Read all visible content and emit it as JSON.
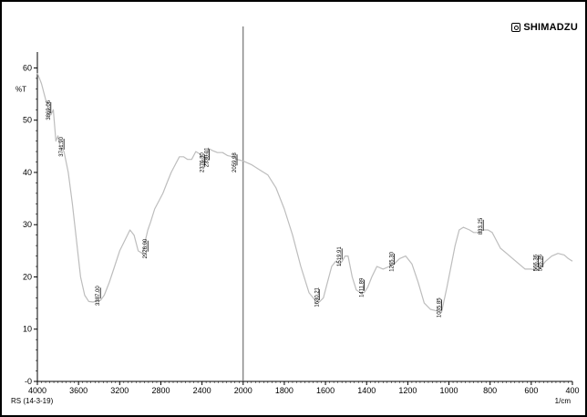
{
  "brand": {
    "logo_icon": "shimadzu-logo-icon",
    "name": "SHIMADZU"
  },
  "chart_data": {
    "type": "line",
    "title": "",
    "xlabel": "1/cm",
    "ylabel": "%T",
    "footer_text": "RS (14-3-19)",
    "xlim": [
      4000,
      400
    ],
    "ylim": [
      0,
      62
    ],
    "x_reversed": true,
    "x_ticks": [
      4000,
      3600,
      3200,
      2800,
      2400,
      2000,
      1600,
      1200,
      800,
      400
    ],
    "x_tick_labels": [
      "4000",
      "3600",
      "3200",
      "2800",
      "2400",
      "2000",
      "1800",
      "1600",
      "1400",
      "1200",
      "1000",
      "800",
      "600",
      "400"
    ],
    "x_tick_values": [
      4000,
      3600,
      3200,
      2800,
      2400,
      2000,
      1800,
      1600,
      1400,
      1200,
      1000,
      800,
      600,
      400
    ],
    "y_ticks": [
      0,
      10,
      20,
      30,
      40,
      50,
      60
    ],
    "y_tick_labels": [
      "-0",
      "10",
      "20",
      "30",
      "40",
      "50",
      "60"
    ],
    "grid": false,
    "marker_line_x": 2000,
    "series": [
      {
        "color": "#bdbdbd",
        "x": [
          4000,
          3960,
          3920,
          3890,
          3869,
          3845,
          3820,
          3800,
          3780,
          3741,
          3700,
          3660,
          3620,
          3580,
          3540,
          3500,
          3460,
          3420,
          3387,
          3350,
          3300,
          3250,
          3200,
          3150,
          3100,
          3060,
          3020,
          2980,
          2950,
          2926,
          2900,
          2860,
          2820,
          2780,
          2740,
          2700,
          2660,
          2620,
          2580,
          2540,
          2500,
          2460,
          2420,
          2390,
          2376,
          2360,
          2350,
          2330,
          2300,
          2250,
          2200,
          2150,
          2100,
          2060,
          2000,
          1960,
          1920,
          1880,
          1840,
          1800,
          1760,
          1720,
          1680,
          1650,
          1630,
          1610,
          1590,
          1570,
          1550,
          1530,
          1519,
          1505,
          1490,
          1470,
          1450,
          1430,
          1412,
          1395,
          1375,
          1350,
          1320,
          1290,
          1266,
          1240,
          1210,
          1180,
          1150,
          1120,
          1090,
          1060,
          1036,
          1010,
          990,
          970,
          950,
          930,
          900,
          880,
          860,
          833,
          810,
          790,
          770,
          750,
          720,
          690,
          660,
          630,
          600,
          580,
          566,
          550,
          530,
          500,
          470,
          440,
          420,
          400
        ],
        "y": [
          59,
          57,
          54,
          52,
          51,
          52,
          46,
          47,
          45,
          44,
          40,
          34,
          27,
          20,
          16.5,
          15.3,
          15.2,
          15.4,
          15.5,
          16.5,
          19,
          22,
          25,
          27,
          29,
          28,
          25,
          24.5,
          27,
          29,
          30.5,
          33,
          34.5,
          36,
          38,
          40,
          41.5,
          43,
          43,
          42.5,
          42.5,
          44,
          43.5,
          42,
          41,
          43,
          44,
          44.5,
          44.2,
          43.8,
          43.8,
          43.2,
          43,
          42.5,
          42.2,
          41.5,
          40.5,
          39.5,
          37,
          33,
          28,
          22,
          17,
          15.5,
          15.2,
          16,
          19,
          22,
          23,
          22.5,
          23,
          24,
          24,
          20,
          17.5,
          17,
          17,
          18,
          20,
          22,
          21.5,
          22,
          22.5,
          23.5,
          24,
          22.5,
          19,
          15,
          13.8,
          13.5,
          13.2,
          18,
          22,
          26,
          29,
          29.5,
          29,
          28.5,
          28.5,
          29,
          29,
          28.5,
          27,
          25.5,
          24.5,
          23.5,
          22.5,
          21.5,
          21.5,
          21.3,
          21.5,
          22,
          23,
          24,
          24.5,
          24.2,
          23.5,
          23
        ]
      }
    ],
    "peak_labels": [
      {
        "x": 3869.06,
        "y": 51,
        "label": "3869.06"
      },
      {
        "x": 3741.9,
        "y": 44,
        "label": "3741.90"
      },
      {
        "x": 3387.0,
        "y": 15.5,
        "label": "3387.00"
      },
      {
        "x": 2926.0,
        "y": 24.5,
        "label": "2926.00"
      },
      {
        "x": 2376.3,
        "y": 41,
        "label": "2376.30"
      },
      {
        "x": 2330.01,
        "y": 42,
        "label": "2330.01"
      },
      {
        "x": 2059.98,
        "y": 41,
        "label": "2059.98"
      },
      {
        "x": 1630.21,
        "y": 15.2,
        "label": "1630.21"
      },
      {
        "x": 1519.91,
        "y": 23,
        "label": "1519.91"
      },
      {
        "x": 1411.89,
        "y": 17,
        "label": "1411.89"
      },
      {
        "x": 1265.3,
        "y": 22,
        "label": "1265.30"
      },
      {
        "x": 1035.85,
        "y": 13.2,
        "label": "1035.85"
      },
      {
        "x": 833.25,
        "y": 28.5,
        "label": "833.25"
      },
      {
        "x": 566.36,
        "y": 21.5,
        "label": "566.36"
      },
      {
        "x": 565.36,
        "y": 21.5,
        "label": "565.36"
      }
    ]
  }
}
